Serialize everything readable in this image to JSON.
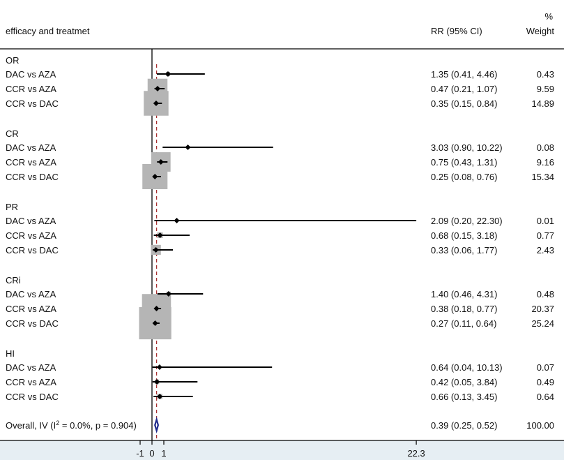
{
  "header": {
    "study_label": "efficacy and treatmet",
    "rr_label": "RR (95% CI)",
    "weight_label_line1": "%",
    "weight_label_line2": "Weight"
  },
  "chart_data": {
    "type": "forest",
    "measure": "RR",
    "x_ticks": [
      "-1",
      "0",
      "1",
      "22.3"
    ],
    "x_tick_values": [
      -1,
      0,
      1,
      22.3
    ],
    "x_range": [
      -1,
      22.3
    ],
    "null_line": 0,
    "overall_line": 0.39,
    "colors": {
      "box": "#b5b5b5",
      "line": "#000000",
      "ref": "#a52a2a",
      "diamond": "#1f2a8c",
      "axis_band": "#e6eef3"
    },
    "groups": [
      {
        "name": "OR",
        "rows": [
          {
            "label": "DAC vs AZA",
            "est": 1.35,
            "lo": 0.41,
            "hi": 4.46,
            "ci_text": "1.35 (0.41, 4.46)",
            "weight": 0.43,
            "weight_text": "0.43"
          },
          {
            "label": "CCR vs AZA",
            "est": 0.47,
            "lo": 0.21,
            "hi": 1.07,
            "ci_text": "0.47 (0.21, 1.07)",
            "weight": 9.59,
            "weight_text": "9.59"
          },
          {
            "label": "CCR vs DAC",
            "est": 0.35,
            "lo": 0.15,
            "hi": 0.84,
            "ci_text": "0.35 (0.15, 0.84)",
            "weight": 14.89,
            "weight_text": "14.89"
          }
        ]
      },
      {
        "name": "CR",
        "rows": [
          {
            "label": "DAC vs AZA",
            "est": 3.03,
            "lo": 0.9,
            "hi": 10.22,
            "ci_text": "3.03 (0.90, 10.22)",
            "weight": 0.08,
            "weight_text": "0.08"
          },
          {
            "label": "CCR vs AZA",
            "est": 0.75,
            "lo": 0.43,
            "hi": 1.31,
            "ci_text": "0.75 (0.43, 1.31)",
            "weight": 9.16,
            "weight_text": "9.16"
          },
          {
            "label": "CCR vs DAC",
            "est": 0.25,
            "lo": 0.08,
            "hi": 0.76,
            "ci_text": "0.25 (0.08, 0.76)",
            "weight": 15.34,
            "weight_text": "15.34"
          }
        ]
      },
      {
        "name": "PR",
        "rows": [
          {
            "label": "DAC vs AZA",
            "est": 2.09,
            "lo": 0.2,
            "hi": 22.3,
            "ci_text": "2.09 (0.20, 22.30)",
            "weight": 0.01,
            "weight_text": "0.01"
          },
          {
            "label": "CCR vs AZA",
            "est": 0.68,
            "lo": 0.15,
            "hi": 3.18,
            "ci_text": "0.68 (0.15, 3.18)",
            "weight": 0.77,
            "weight_text": "0.77"
          },
          {
            "label": "CCR vs DAC",
            "est": 0.33,
            "lo": 0.06,
            "hi": 1.77,
            "ci_text": "0.33 (0.06, 1.77)",
            "weight": 2.43,
            "weight_text": "2.43"
          }
        ]
      },
      {
        "name": "CRi",
        "rows": [
          {
            "label": "DAC vs AZA",
            "est": 1.4,
            "lo": 0.46,
            "hi": 4.31,
            "ci_text": "1.40 (0.46, 4.31)",
            "weight": 0.48,
            "weight_text": "0.48"
          },
          {
            "label": "CCR vs AZA",
            "est": 0.38,
            "lo": 0.18,
            "hi": 0.77,
            "ci_text": "0.38 (0.18, 0.77)",
            "weight": 20.37,
            "weight_text": "20.37"
          },
          {
            "label": "CCR vs DAC",
            "est": 0.27,
            "lo": 0.11,
            "hi": 0.64,
            "ci_text": "0.27 (0.11, 0.64)",
            "weight": 25.24,
            "weight_text": "25.24"
          }
        ]
      },
      {
        "name": "HI",
        "rows": [
          {
            "label": "DAC vs AZA",
            "est": 0.64,
            "lo": 0.04,
            "hi": 10.13,
            "ci_text": "0.64 (0.04, 10.13)",
            "weight": 0.07,
            "weight_text": "0.07"
          },
          {
            "label": "CCR vs AZA",
            "est": 0.42,
            "lo": 0.05,
            "hi": 3.84,
            "ci_text": "0.42 (0.05, 3.84)",
            "weight": 0.49,
            "weight_text": "0.49"
          },
          {
            "label": "CCR vs DAC",
            "est": 0.66,
            "lo": 0.13,
            "hi": 3.45,
            "ci_text": "0.66 (0.13, 3.45)",
            "weight": 0.64,
            "weight_text": "0.64"
          }
        ]
      }
    ],
    "overall": {
      "label_prefix": "Overall, IV (I",
      "label_sup": "2",
      "label_suffix": " = 0.0%, p = 0.904)",
      "est": 0.39,
      "lo": 0.25,
      "hi": 0.52,
      "ci_text": "0.39 (0.25, 0.52)",
      "weight_text": "100.00"
    }
  }
}
